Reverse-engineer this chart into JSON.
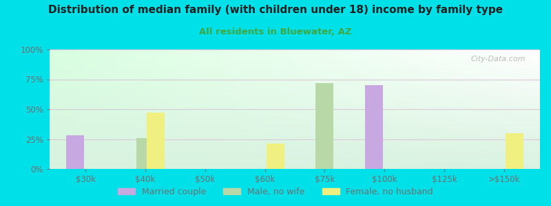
{
  "title": "Distribution of median family (with children under 18) income by family type",
  "subtitle": "All residents in Bluewater, AZ",
  "categories": [
    "$30k",
    "$40k",
    "$50k",
    "$60k",
    "$75k",
    "$100k",
    "$125k",
    ">$150k"
  ],
  "series": {
    "Married couple": [
      28,
      0,
      0,
      0,
      0,
      70,
      0,
      0
    ],
    "Male, no wife": [
      0,
      26,
      0,
      0,
      72,
      0,
      0,
      0
    ],
    "Female, no husband": [
      0,
      47,
      0,
      21,
      0,
      0,
      0,
      30
    ]
  },
  "colors": {
    "Married couple": "#c8a8e0",
    "Male, no wife": "#b8d8a8",
    "Female, no husband": "#f0f080"
  },
  "ylim": [
    0,
    100
  ],
  "yticks": [
    0,
    25,
    50,
    75,
    100
  ],
  "ytick_labels": [
    "0%",
    "25%",
    "50%",
    "75%",
    "100%"
  ],
  "bg_outer": "#00e0e8",
  "title_color": "#202020",
  "subtitle_color": "#40a840",
  "axis_color": "#707070",
  "grid_color": "#d8c8d8",
  "watermark": "City-Data.com",
  "bar_width": 0.35
}
